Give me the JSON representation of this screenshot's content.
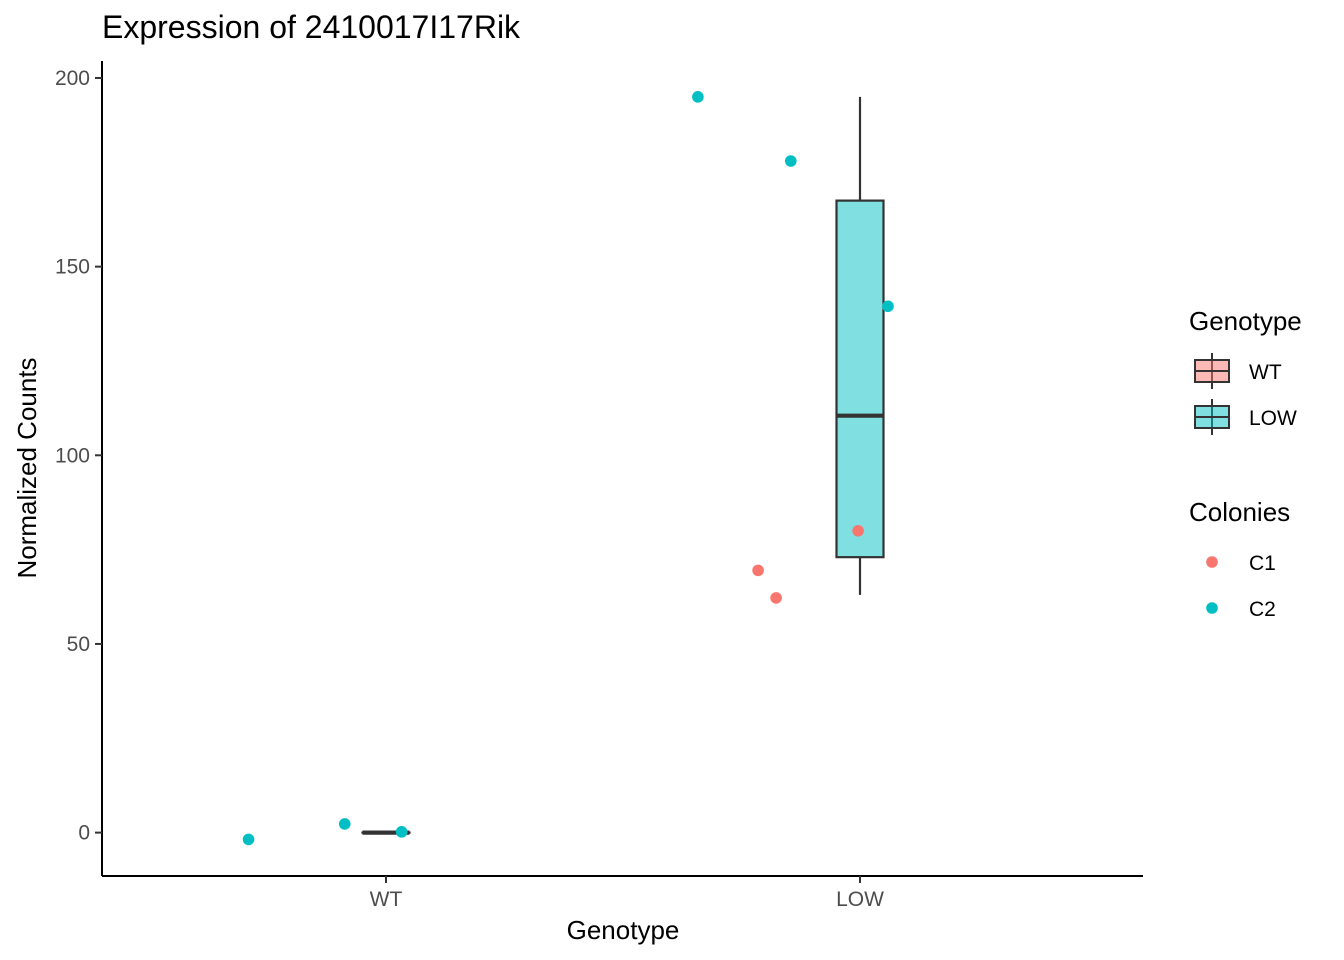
{
  "chart_data": {
    "type": "box",
    "title": "Expression of 2410017I17Rik",
    "xlabel": "Genotype",
    "ylabel": "Normalized Counts",
    "categories": [
      "WT",
      "LOW"
    ],
    "yticks": [
      0,
      50,
      100,
      150,
      200
    ],
    "ylim": [
      -11.5,
      204.5
    ],
    "grid": false,
    "legend_position": "right",
    "boxes": [
      {
        "category": "WT",
        "genotype": "WT",
        "min": 0,
        "q1": 0,
        "median": 0,
        "q3": 0,
        "max": 0
      },
      {
        "category": "LOW",
        "genotype": "LOW",
        "min": 63,
        "q1": 73,
        "median": 110.5,
        "q3": 167.5,
        "max": 195
      }
    ],
    "points": [
      {
        "category": "WT",
        "x_jitter": -0.29,
        "y": -1.8,
        "colony": "C2"
      },
      {
        "category": "WT",
        "x_jitter": -0.087,
        "y": 2.3,
        "colony": "C2"
      },
      {
        "category": "WT",
        "x_jitter": 0.033,
        "y": 0.2,
        "colony": "C2"
      },
      {
        "category": "LOW",
        "x_jitter": -0.342,
        "y": 195,
        "colony": "C2"
      },
      {
        "category": "LOW",
        "x_jitter": -0.146,
        "y": 178,
        "colony": "C2"
      },
      {
        "category": "LOW",
        "x_jitter": 0.059,
        "y": 139.5,
        "colony": "C2"
      },
      {
        "category": "LOW",
        "x_jitter": -0.004,
        "y": 80,
        "colony": "C1"
      },
      {
        "category": "LOW",
        "x_jitter": -0.215,
        "y": 69.5,
        "colony": "C1"
      },
      {
        "category": "LOW",
        "x_jitter": -0.177,
        "y": 62.2,
        "colony": "C1"
      }
    ],
    "legends": [
      {
        "title": "Genotype",
        "kind": "box",
        "entries": [
          {
            "label": "WT",
            "fill": "#F8766D"
          },
          {
            "label": "LOW",
            "fill": "#00BFC4"
          }
        ]
      },
      {
        "title": "Colonies",
        "kind": "point",
        "entries": [
          {
            "label": "C1",
            "color": "#F8766D"
          },
          {
            "label": "C2",
            "color": "#00BFC4"
          }
        ]
      }
    ],
    "colors": {
      "WT": "#F8766D",
      "LOW": "#00BFC4",
      "C1": "#F8766D",
      "C2": "#00BFC4",
      "box_line": "#333333",
      "axis": "#000000",
      "tick_text": "#4d4d4d"
    },
    "box_fill_alpha": 0.5
  }
}
